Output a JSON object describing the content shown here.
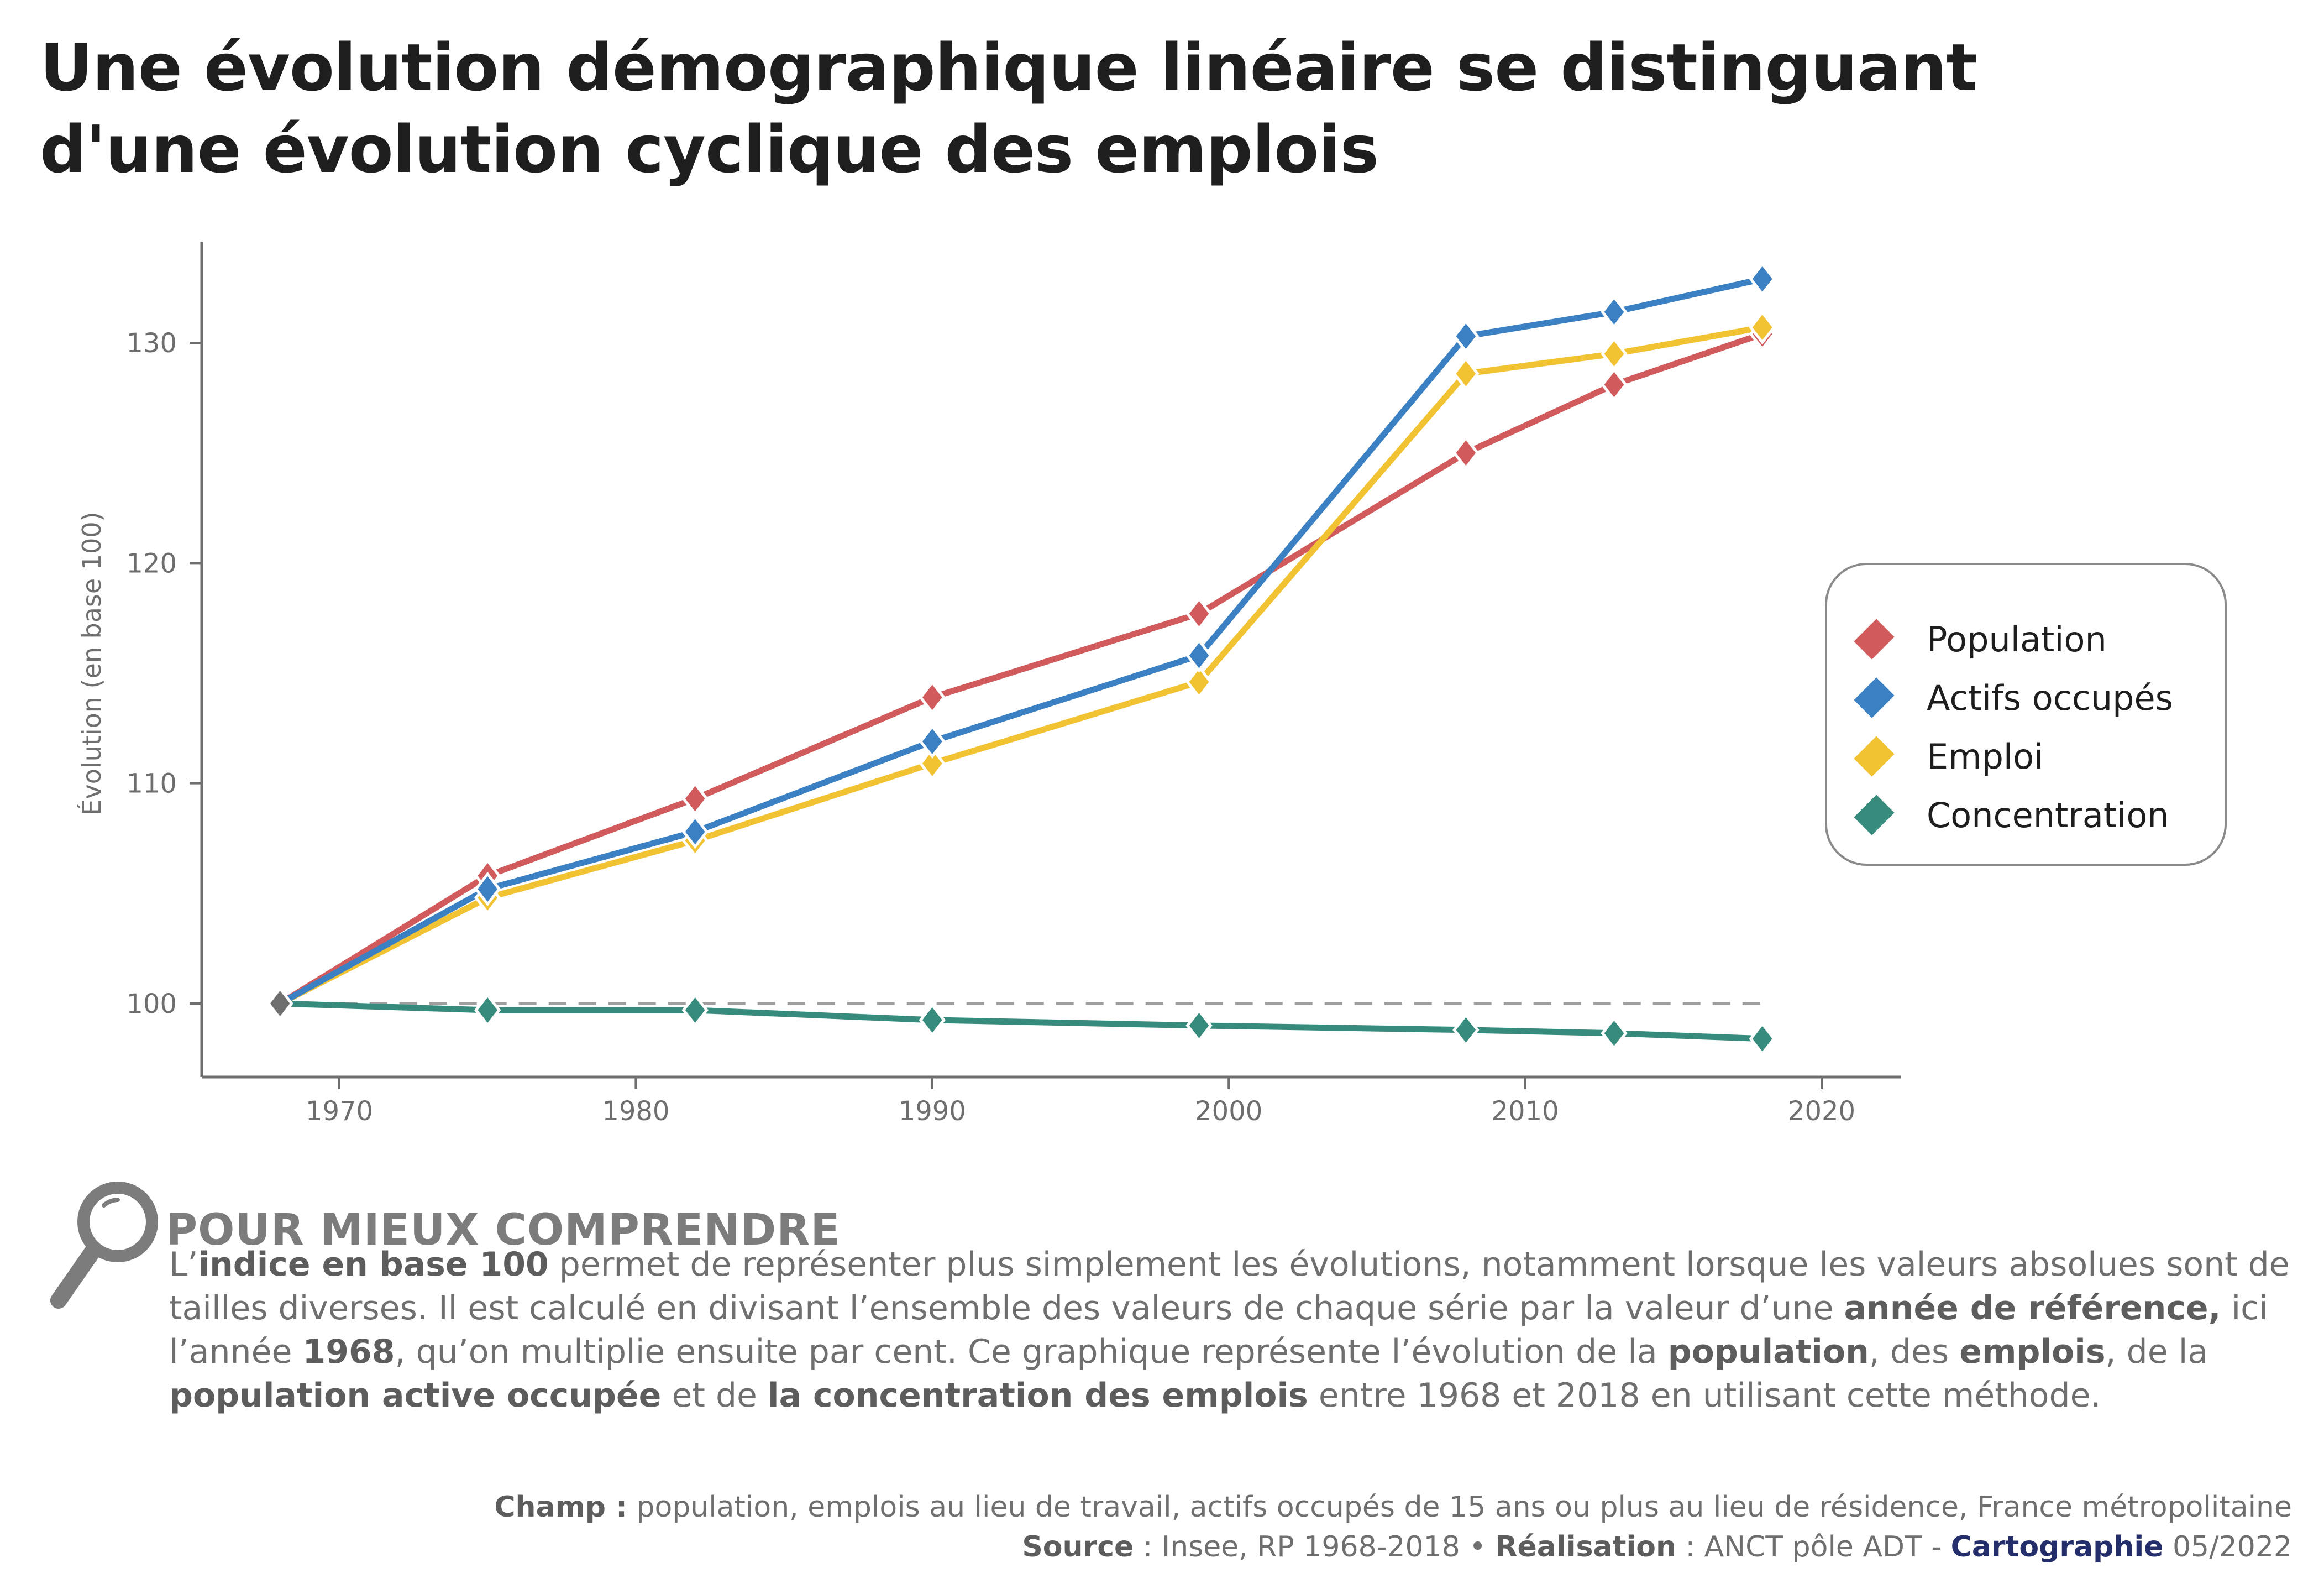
{
  "title": "Une évolution démographique linéaire se distinguant d'une évolution cyclique des emplois",
  "chart_data": {
    "type": "line",
    "title": "Une évolution démographique linéaire se distinguant d'une évolution cyclique des emplois",
    "xlabel": "",
    "ylabel": "Évolution (en base 100)",
    "x": [
      1968,
      1975,
      1982,
      1990,
      1999,
      2008,
      2013,
      2018
    ],
    "xlim": [
      1964,
      2023
    ],
    "ylim": [
      96.8,
      134.5
    ],
    "xticks": [
      1970,
      1980,
      1990,
      2000,
      2010,
      2020
    ],
    "xtick_labels": [
      "1970",
      "1980",
      "1990",
      "2000",
      "2010",
      "2020"
    ],
    "yticks": [
      100,
      110,
      120,
      130
    ],
    "ytick_labels": [
      "100",
      "110",
      "120",
      "130"
    ],
    "grid": false,
    "reference_line": {
      "y": 100,
      "style": "dashed",
      "color": "#9e9e9e"
    },
    "base_marker_color": "#6e6e6e",
    "legend_position": "right",
    "series": [
      {
        "name": "Population",
        "color": "#d05a5c",
        "values": [
          100,
          105.8,
          109.3,
          113.9,
          117.7,
          125.0,
          128.1,
          130.4
        ]
      },
      {
        "name": "Actifs occupés",
        "color": "#3a80c3",
        "values": [
          100,
          105.2,
          107.8,
          111.9,
          115.8,
          130.3,
          131.4,
          132.9
        ]
      },
      {
        "name": "Emploi",
        "color": "#f1c232",
        "values": [
          100,
          104.8,
          107.4,
          110.9,
          114.6,
          128.6,
          129.5,
          130.7
        ]
      },
      {
        "name": "Concentration",
        "color": "#378b7c",
        "values": [
          100,
          99.7,
          99.7,
          99.25,
          99.0,
          98.8,
          98.65,
          98.4
        ]
      }
    ]
  },
  "explain": {
    "icon": "magnifier-icon",
    "title": "POUR MIEUX COMPRENDRE",
    "body": [
      {
        "t": "L’",
        "b": false
      },
      {
        "t": "indice en base 100",
        "b": true
      },
      {
        "t": " permet de représenter plus simplement les évolutions, notamment lorsque les valeurs absolues sont de tailles diverses. Il est calculé en divisant l’ensemble des valeurs de chaque série par la valeur d’une ",
        "b": false
      },
      {
        "t": "année de référence,",
        "b": true
      },
      {
        "t": " ici l’année ",
        "b": false
      },
      {
        "t": "1968",
        "b": true
      },
      {
        "t": ", qu’on multiplie ensuite par cent. Ce graphique représente l’évolution de la ",
        "b": false
      },
      {
        "t": "population",
        "b": true
      },
      {
        "t": ", des ",
        "b": false
      },
      {
        "t": "emplois",
        "b": true
      },
      {
        "t": ", de la ",
        "b": false
      },
      {
        "t": "population active occupée",
        "b": true
      },
      {
        "t": " et de ",
        "b": false
      },
      {
        "t": "la concentration des emplois",
        "b": true
      },
      {
        "t": " entre 1968 et 2018 en utilisant cette méthode.",
        "b": false
      }
    ]
  },
  "footer": {
    "champ_label": "Champ :",
    "champ_text": " population, emplois au lieu de travail, actifs occupés de 15 ans ou plus au lieu de résidence, France métropolitaine",
    "source_label": "Source",
    "source_text": " : Insee, RP 1968-2018 • ",
    "realisation_label": "Réalisation",
    "realisation_text": " : ANCT pôle ADT - ",
    "carto_label": "Cartographie",
    "date": " 05/2022"
  }
}
